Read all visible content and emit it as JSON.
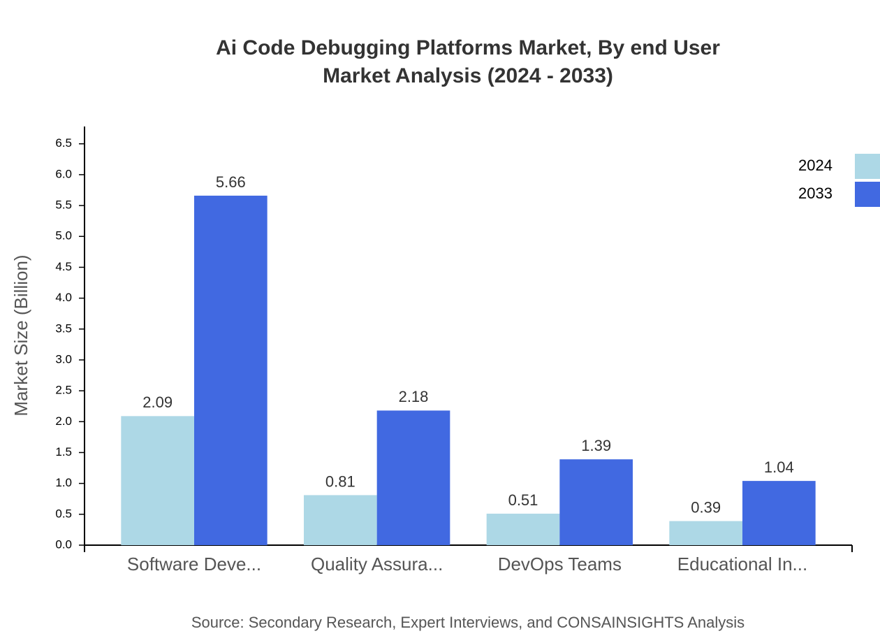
{
  "chart_data": {
    "type": "bar",
    "title": [
      "Ai Code Debugging Platforms Market, By end User",
      "Market Analysis (2024 - 2033)"
    ],
    "y_label": "Market Size (Billion)",
    "source": "Source: Secondary Research, Expert Interviews, and CONSAINSIGHTS Analysis",
    "categories": [
      "Software Deve...",
      "Quality Assura...",
      "DevOps Teams",
      "Educational In..."
    ],
    "series": [
      {
        "name": "2024",
        "color": "#add8e6",
        "values": [
          2.09,
          0.81,
          0.51,
          0.39
        ]
      },
      {
        "name": "2033",
        "color": "#4169e1",
        "values": [
          5.66,
          2.18,
          1.39,
          1.04
        ]
      }
    ],
    "ylim": [
      0,
      6.78
    ],
    "yticks": [
      {
        "value": 0,
        "label": "0.0"
      },
      {
        "value": 0.5,
        "label": "0.5"
      },
      {
        "value": 1,
        "label": "1.0"
      },
      {
        "value": 1.5,
        "label": "1.5"
      },
      {
        "value": 2,
        "label": "2.0"
      },
      {
        "value": 2.5,
        "label": "2.5"
      },
      {
        "value": 3,
        "label": "3.0"
      },
      {
        "value": 3.5,
        "label": "3.5"
      },
      {
        "value": 4,
        "label": "4.0"
      },
      {
        "value": 4.5,
        "label": "4.5"
      },
      {
        "value": 5,
        "label": "5.0"
      },
      {
        "value": 5.5,
        "label": "5.5"
      },
      {
        "value": 6,
        "label": "6.0"
      },
      {
        "value": 6.5,
        "label": "6.5"
      }
    ],
    "grid": false,
    "legend": "top-right"
  }
}
